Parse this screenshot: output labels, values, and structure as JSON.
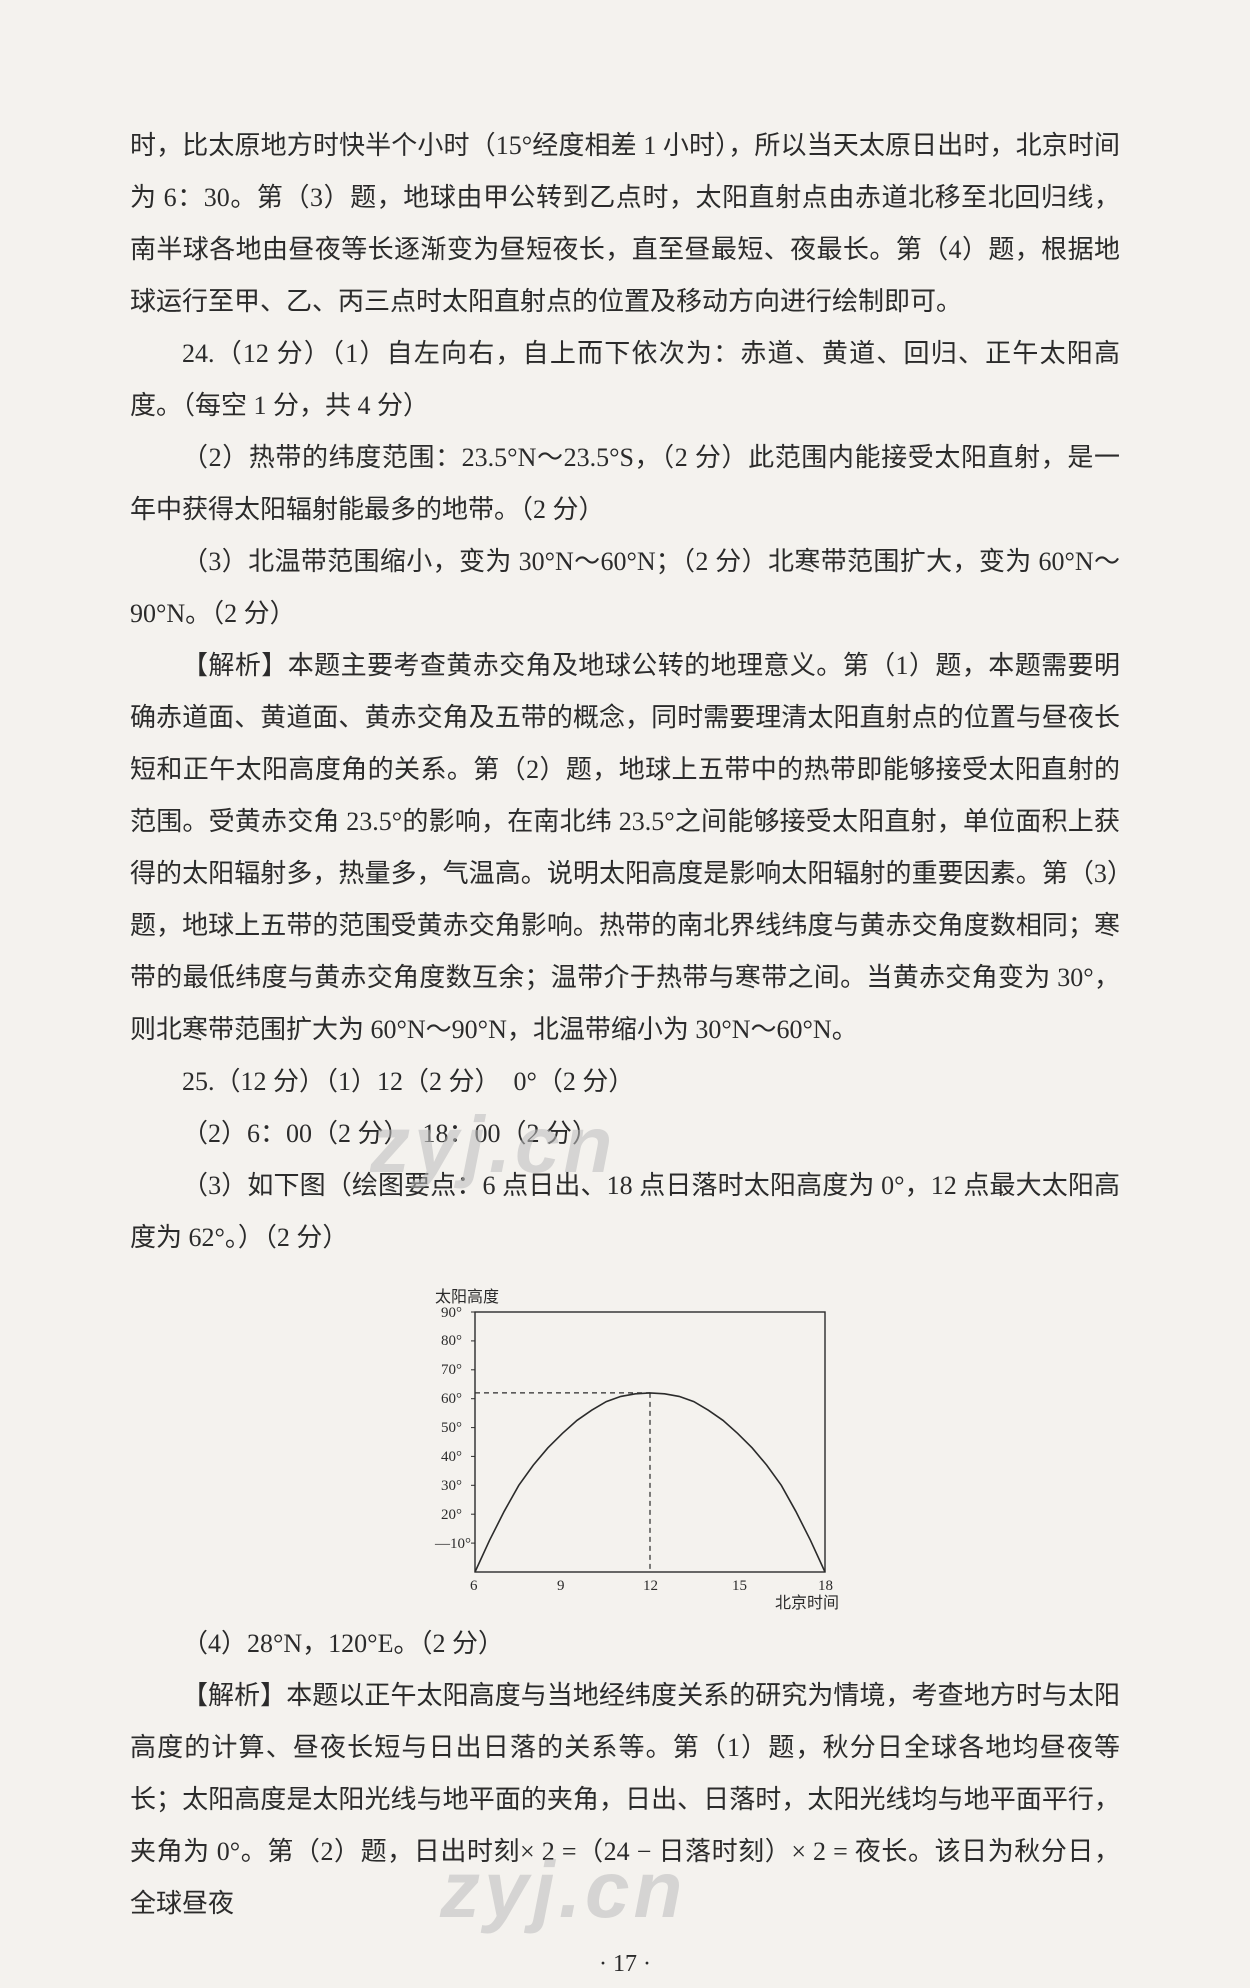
{
  "paragraphs": {
    "p1": "时，比太原地方时快半个小时（15°经度相差 1 小时），所以当天太原日出时，北京时间为 6：30。第（3）题，地球由甲公转到乙点时，太阳直射点由赤道北移至北回归线，南半球各地由昼夜等长逐渐变为昼短夜长，直至昼最短、夜最长。第（4）题，根据地球运行至甲、乙、丙三点时太阳直射点的位置及移动方向进行绘制即可。",
    "p2": "24.（12 分）（1）自左向右，自上而下依次为：赤道、黄道、回归、正午太阳高度。（每空 1 分，共 4 分）",
    "p3": "（2）热带的纬度范围：23.5°N～23.5°S，（2 分）此范围内能接受太阳直射，是一年中获得太阳辐射能最多的地带。（2 分）",
    "p4": "（3）北温带范围缩小，变为 30°N～60°N；（2 分）北寒带范围扩大，变为 60°N～90°N。（2 分）",
    "p5": "【解析】本题主要考查黄赤交角及地球公转的地理意义。第（1）题，本题需要明确赤道面、黄道面、黄赤交角及五带的概念，同时需要理清太阳直射点的位置与昼夜长短和正午太阳高度角的关系。第（2）题，地球上五带中的热带即能够接受太阳直射的范围。受黄赤交角 23.5°的影响，在南北纬 23.5°之间能够接受太阳直射，单位面积上获得的太阳辐射多，热量多，气温高。说明太阳高度是影响太阳辐射的重要因素。第（3）题，地球上五带的范围受黄赤交角影响。热带的南北界线纬度与黄赤交角度数相同；寒带的最低纬度与黄赤交角度数互余；温带介于热带与寒带之间。当黄赤交角变为 30°，则北寒带范围扩大为 60°N～90°N，北温带缩小为 30°N～60°N。",
    "p6": "25.（12 分）（1）12（2 分）　0°（2 分）",
    "p7": "（2）6：00（2 分）　18：00（2 分）",
    "p8": "（3）如下图（绘图要点：6 点日出、18 点日落时太阳高度为 0°，12 点最大太阳高度为 62°。）（2 分）",
    "p9": "（4）28°N，120°E。（2 分）",
    "p10": "【解析】本题以正午太阳高度与当地经纬度关系的研究为情境，考查地方时与太阳高度的计算、昼夜长短与日出日落的关系等。第（1）题，秋分日全球各地均昼夜等长；太阳高度是太阳光线与地平面的夹角，日出、日落时，太阳光线均与地平面平行，夹角为 0°。第（2）题，日出时刻× 2 =（24 − 日落时刻）× 2 = 夜长。该日为秋分日，全球昼夜"
  },
  "chart": {
    "type": "line",
    "title_y": "太阳高度",
    "xlabel": "北京时间",
    "x_ticks": [
      6,
      9,
      12,
      15,
      18
    ],
    "y_ticks": [
      10,
      20,
      30,
      40,
      50,
      60,
      70,
      80,
      90
    ],
    "y_tick_labels": [
      "—10°",
      "20°",
      "30°",
      "40°",
      "50°",
      "60°",
      "70°",
      "80°",
      "90°"
    ],
    "xlim": [
      6,
      18
    ],
    "ylim": [
      0,
      90
    ],
    "peak_x": 12,
    "peak_y": 62,
    "curve_points": [
      [
        6,
        0
      ],
      [
        6.5,
        11
      ],
      [
        7,
        21
      ],
      [
        7.5,
        30
      ],
      [
        8,
        37
      ],
      [
        8.5,
        43
      ],
      [
        9,
        48
      ],
      [
        9.5,
        52.5
      ],
      [
        10,
        56
      ],
      [
        10.5,
        59
      ],
      [
        11,
        60.8
      ],
      [
        11.5,
        61.7
      ],
      [
        12,
        62
      ],
      [
        12.5,
        61.7
      ],
      [
        13,
        60.8
      ],
      [
        13.5,
        59
      ],
      [
        14,
        56
      ],
      [
        14.5,
        52.5
      ],
      [
        15,
        48
      ],
      [
        15.5,
        43
      ],
      [
        16,
        37
      ],
      [
        16.5,
        30
      ],
      [
        17,
        21
      ],
      [
        17.5,
        11
      ],
      [
        18,
        0
      ]
    ],
    "line_color": "#2b2b2b",
    "axis_color": "#2b2b2b",
    "background_color": "#f4f2ee",
    "label_fontsize": 15,
    "frame": true
  },
  "pagenum": "· 17 ·",
  "watermarks": {
    "w1": "zyj.cn",
    "w2": "zyj.cn"
  }
}
